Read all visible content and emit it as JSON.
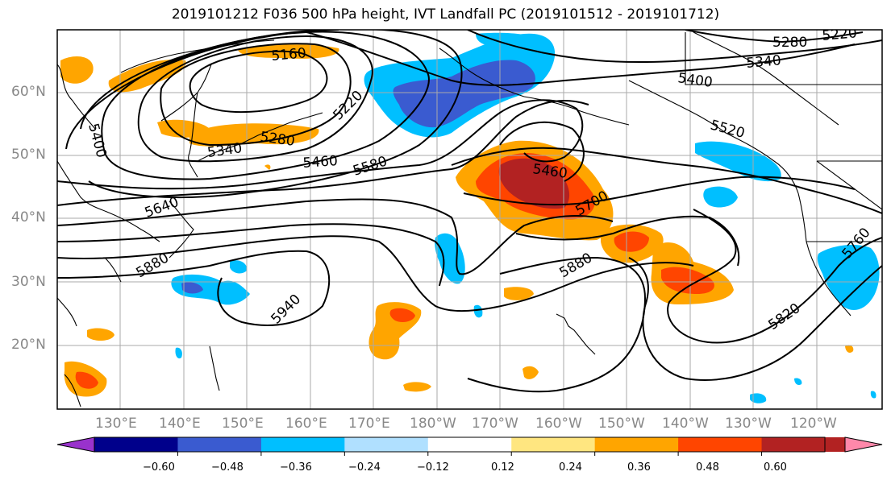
{
  "title": "2019101212 F036 500 hPa height, IVT Landfall PC (2019101512 - 2019101712)",
  "lat_labels": [
    "60°N",
    "50°N",
    "40°N",
    "30°N",
    "20°N"
  ],
  "lon_labels": [
    "130°E",
    "140°E",
    "150°E",
    "160°E",
    "170°E",
    "180°W",
    "170°W",
    "160°W",
    "150°W",
    "140°W",
    "130°W",
    "120°W"
  ],
  "contour_labels": [
    "5160",
    "5220",
    "5280",
    "5340",
    "5400",
    "5460",
    "5580",
    "5640",
    "5700",
    "5760",
    "5820",
    "5880",
    "5940",
    "5280",
    "5340",
    "5400",
    "5520",
    "5220",
    "5400"
  ],
  "colorbar": {
    "ticks": [
      "−0.60",
      "−0.48",
      "−0.36",
      "−0.24",
      "−0.12",
      "0.12",
      "0.24",
      "0.36",
      "0.48",
      "0.60"
    ],
    "colors": [
      "#9932cc",
      "#00008b",
      "#3a5bd0",
      "#00bfff",
      "#b0e0ff",
      "#ffffff",
      "#ffe680",
      "#ffa500",
      "#ff4500",
      "#b22222",
      "#ff88aa"
    ]
  },
  "colors": {
    "land_outline": "#000000",
    "contour": "#000000",
    "grid": "#aaaaaa"
  }
}
